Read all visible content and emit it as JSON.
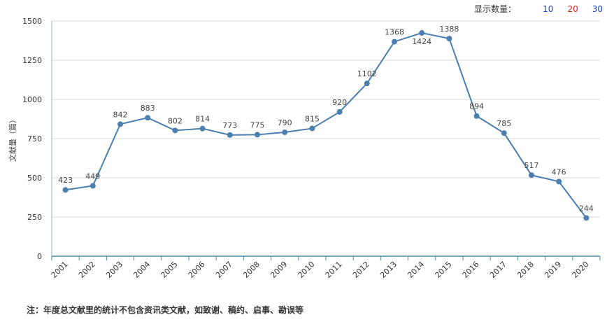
{
  "display_count": {
    "label": "显示数量：",
    "options": [
      {
        "text": "10",
        "color": "#1a3dcc"
      },
      {
        "text": "20",
        "color": "#d92323"
      },
      {
        "text": "30",
        "color": "#1a3dcc"
      }
    ]
  },
  "footnote": "注：年度总文献里的统计不包含资讯类文献，如致谢、稿约、启事、勘误等",
  "chart_data": {
    "type": "line",
    "title": "",
    "xlabel": "",
    "ylabel": "文献量（篇）",
    "ylim": [
      0,
      1500
    ],
    "yticks": [
      0,
      250,
      500,
      750,
      1000,
      1250,
      1500
    ],
    "grid": true,
    "color": "#4a7fb0",
    "categories": [
      "2001",
      "2002",
      "2003",
      "2004",
      "2005",
      "2006",
      "2007",
      "2008",
      "2009",
      "2010",
      "2011",
      "2012",
      "2013",
      "2014",
      "2015",
      "2016",
      "2017",
      "2018",
      "2019",
      "2020"
    ],
    "series": [
      {
        "values": [
          423,
          449,
          842,
          883,
          802,
          814,
          773,
          775,
          790,
          815,
          920,
          1102,
          1368,
          1424,
          1388,
          894,
          785,
          517,
          476,
          244
        ]
      }
    ]
  }
}
